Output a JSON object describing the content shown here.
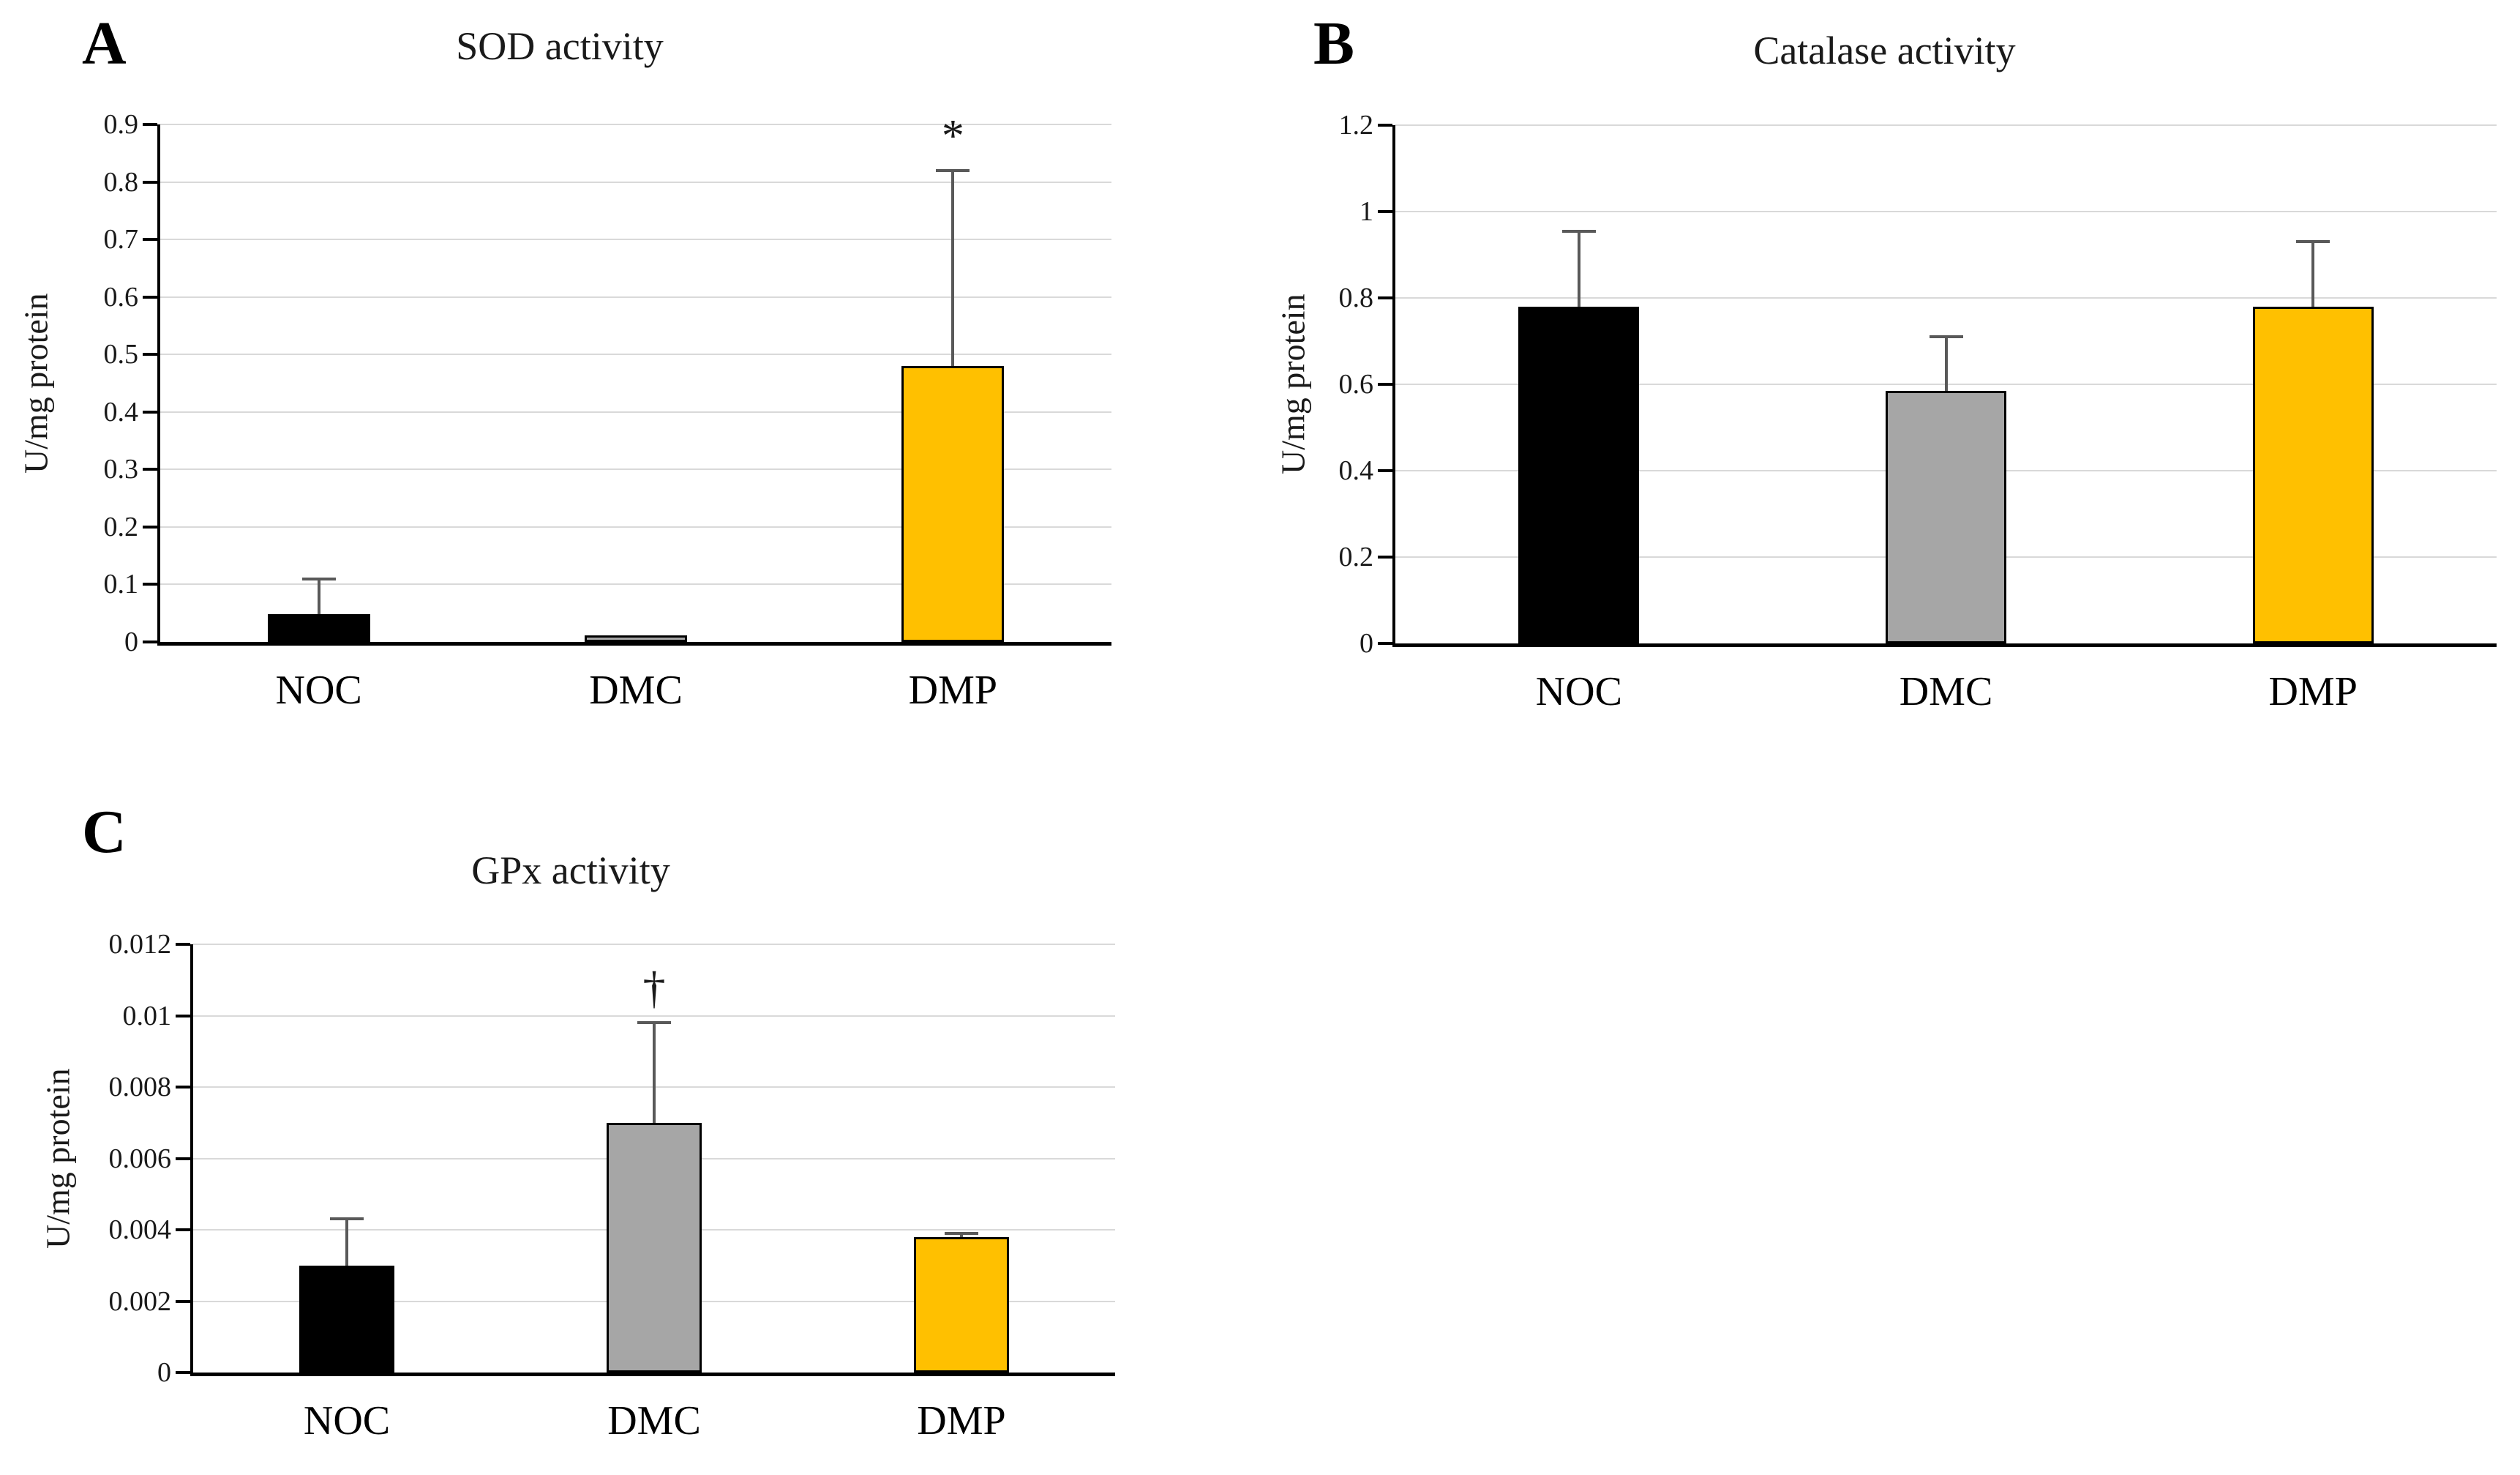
{
  "figure": {
    "background": "#FFFFFF",
    "colors": {
      "bar_black": "#000000",
      "bar_gray": "#A6A6A6",
      "bar_gold": "#FFC000",
      "gridline": "#D9D9D9",
      "error_bar": "#595959",
      "axis": "#000000"
    }
  },
  "chart_data": [
    {
      "id": "A",
      "type": "bar",
      "panel_label": "A",
      "title": "SOD activity",
      "xlabel": "",
      "ylabel": "U/mg protein",
      "categories": [
        "NOC",
        "DMC",
        "DMP"
      ],
      "values": [
        0.048,
        0.012,
        0.48
      ],
      "error_caps": [
        0.11,
        null,
        0.82
      ],
      "annotations": [
        null,
        null,
        "*"
      ],
      "bar_colors": [
        "#000000",
        "#A6A6A6",
        "#FFC000"
      ],
      "ylim": [
        0,
        0.9
      ],
      "yticks": [
        0,
        0.1,
        0.2,
        0.3,
        0.4,
        0.5,
        0.6,
        0.7,
        0.8,
        0.9
      ],
      "ytick_labels": [
        "0",
        "0.1",
        "0.2",
        "0.3",
        "0.4",
        "0.5",
        "0.6",
        "0.7",
        "0.8",
        "0.9"
      ],
      "grid": true,
      "legend_position": "none"
    },
    {
      "id": "B",
      "type": "bar",
      "panel_label": "B",
      "title": "Catalase activity",
      "xlabel": "",
      "ylabel": "U/mg protein",
      "categories": [
        "NOC",
        "DMC",
        "DMP"
      ],
      "values": [
        0.78,
        0.585,
        0.78
      ],
      "error_caps": [
        0.955,
        0.71,
        0.93
      ],
      "annotations": [
        null,
        null,
        null
      ],
      "bar_colors": [
        "#000000",
        "#A6A6A6",
        "#FFC000"
      ],
      "ylim": [
        0,
        1.2
      ],
      "yticks": [
        0,
        0.2,
        0.4,
        0.6,
        0.8,
        1,
        1.2
      ],
      "ytick_labels": [
        "0",
        "0.2",
        "0.4",
        "0.6",
        "0.8",
        "1",
        "1.2"
      ],
      "grid": true,
      "legend_position": "none"
    },
    {
      "id": "C",
      "type": "bar",
      "panel_label": "C",
      "title": "GPx activity",
      "xlabel": "",
      "ylabel": "U/mg protein",
      "categories": [
        "NOC",
        "DMC",
        "DMP"
      ],
      "values": [
        0.003,
        0.007,
        0.0038
      ],
      "error_caps": [
        0.0043,
        0.0098,
        0.0039
      ],
      "annotations": [
        null,
        "†",
        null
      ],
      "bar_colors": [
        "#000000",
        "#A6A6A6",
        "#FFC000"
      ],
      "ylim": [
        0,
        0.012
      ],
      "yticks": [
        0,
        0.002,
        0.004,
        0.006,
        0.008,
        0.01,
        0.012
      ],
      "ytick_labels": [
        "0",
        "0.002",
        "0.004",
        "0.006",
        "0.008",
        "0.01",
        "0.012"
      ],
      "grid": true,
      "legend_position": "none"
    }
  ]
}
